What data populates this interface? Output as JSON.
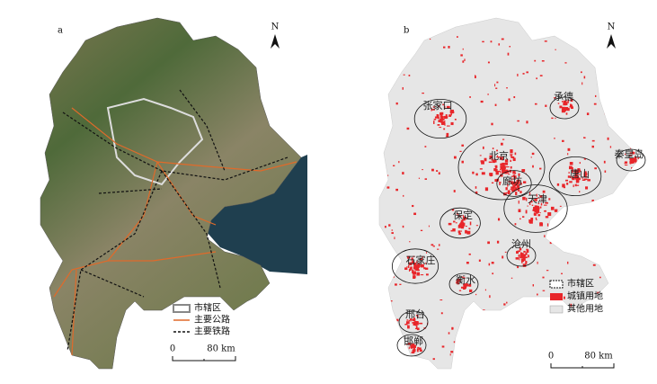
{
  "panels": [
    {
      "label": "a",
      "north": "N",
      "legend": [
        "市辖区",
        "主要公路",
        "主要铁路"
      ],
      "scale": {
        "start": "0",
        "end": "80 km"
      }
    },
    {
      "label": "b",
      "north": "N",
      "cities": [
        "张家口",
        "承德",
        "秦皇岛",
        "北京",
        "唐山",
        "廊坊",
        "天津",
        "保定",
        "沧州",
        "石家庄",
        "衡水",
        "邢台",
        "邯郸"
      ],
      "legend": [
        "市辖区",
        "城镇用地",
        "其他用地"
      ],
      "scale": {
        "start": "0",
        "end": "80 km"
      }
    }
  ]
}
